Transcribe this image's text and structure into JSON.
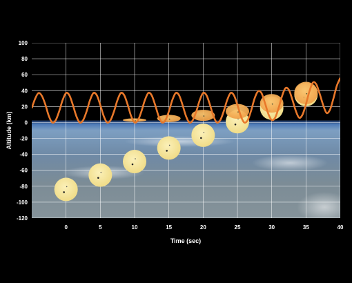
{
  "chart_data": {
    "type": "line",
    "title": "",
    "xlabel": "Time (sec)",
    "ylabel": "Altitude (km)",
    "xlim": [
      -5,
      40
    ],
    "ylim": [
      -120,
      100
    ],
    "x_ticks": [
      0,
      5,
      10,
      15,
      20,
      25,
      30,
      35,
      40
    ],
    "y_ticks": [
      -120,
      -100,
      -80,
      -60,
      -40,
      -20,
      0,
      20,
      40,
      60,
      80,
      100
    ],
    "grid": true,
    "background": "Earth horizon photograph below 0 km, black sky above",
    "colors": {
      "curve": "#e8782a",
      "disk": "#f5e6a0",
      "disk_orange": "#f6b25a",
      "grid": "#ffffff"
    },
    "series": [
      {
        "kind": "curve",
        "x": [
          -5,
          -4.5,
          -4,
          -3.5,
          -3,
          -2.5,
          -2,
          -1.5,
          -1,
          -0.5,
          0,
          0.5,
          1,
          1.5,
          2,
          2.5,
          3,
          3.5,
          4,
          4.5,
          5,
          5.5,
          6,
          6.5,
          7,
          7.5,
          8,
          8.5,
          9,
          9.5,
          10,
          10.5,
          11,
          11.5,
          12,
          12.5,
          13,
          13.5,
          14,
          14.5,
          15,
          15.5,
          16,
          16.5,
          17,
          17.5,
          18,
          18.5,
          19,
          19.5,
          20,
          20.5,
          21,
          21.5,
          22,
          22.5,
          23,
          23.5,
          24,
          24.5,
          25,
          25.5,
          26,
          26.5,
          27,
          27.5,
          28,
          28.5,
          29,
          29.5,
          30,
          30.5,
          31,
          31.5,
          32,
          32.5,
          33,
          33.5,
          34,
          34.5,
          35,
          35.5,
          36,
          36.5,
          37,
          37.5,
          38,
          38.5,
          39,
          39.5,
          40
        ],
        "y": [
          18,
          30,
          37,
          33,
          22,
          8,
          0,
          3,
          14,
          28,
          37,
          34,
          22,
          8,
          0,
          3,
          14,
          28,
          37,
          34,
          22,
          8,
          0,
          3,
          14,
          28,
          37,
          34,
          22,
          8,
          0,
          3,
          14,
          28,
          37,
          34,
          22,
          8,
          0,
          3,
          14,
          28,
          37,
          34,
          22,
          8,
          0,
          3,
          14,
          28,
          37,
          34,
          22,
          8,
          0,
          3,
          14,
          28,
          37,
          34,
          22,
          8,
          0,
          3,
          15,
          30,
          39,
          37,
          25,
          11,
          3,
          6,
          18,
          33,
          43,
          41,
          29,
          15,
          6,
          10,
          23,
          39,
          50,
          48,
          36,
          22,
          12,
          16,
          30,
          46,
          56
        ]
      },
      {
        "kind": "disks",
        "points": [
          {
            "t": 0,
            "alt": -84,
            "shape": "circle",
            "color": "#f5e6a0"
          },
          {
            "t": 5,
            "alt": -66,
            "shape": "circle",
            "color": "#f5e6a0"
          },
          {
            "t": 10,
            "alt": -49,
            "shape": "circle",
            "color": "#f5e6a0"
          },
          {
            "t": 15,
            "alt": -32,
            "shape": "circle",
            "color": "#f5e6a0"
          },
          {
            "t": 20,
            "alt": -16,
            "shape": "circle",
            "color": "#f5e6a0"
          },
          {
            "t": 25,
            "alt": 1,
            "shape": "circle",
            "color": "#f5e6a0"
          },
          {
            "t": 30,
            "alt": 18,
            "shape": "circle",
            "color": "#f5e6a0"
          },
          {
            "t": 35,
            "alt": 35,
            "shape": "circle",
            "color": "#f5e6a0"
          },
          {
            "t": 10,
            "alt": 3,
            "shape": "ellipse",
            "color": "#f6b25a"
          },
          {
            "t": 15,
            "alt": 5,
            "shape": "ellipse",
            "color": "#f6b25a"
          },
          {
            "t": 20,
            "alt": 9,
            "shape": "ellipse",
            "color": "#f6b25a"
          },
          {
            "t": 25,
            "alt": 14,
            "shape": "ellipse",
            "color": "#f6b25a"
          },
          {
            "t": 30,
            "alt": 24,
            "shape": "ellipse",
            "color": "#f6b25a"
          },
          {
            "t": 35,
            "alt": 37,
            "shape": "ellipse",
            "color": "#f6b25a"
          }
        ]
      }
    ]
  }
}
